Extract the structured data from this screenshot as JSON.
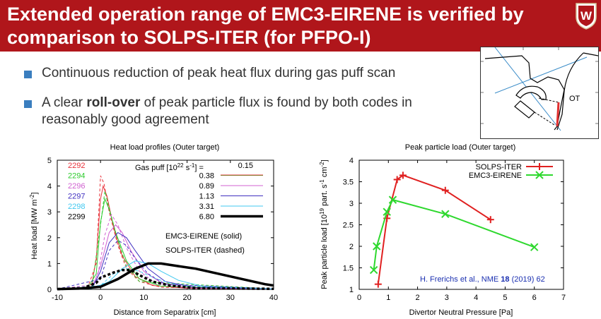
{
  "slide": {
    "title_line1": "Extended operation range of EMC3-EIRENE is verified by",
    "title_line2": "comparison to SOLPS-ITER (for PFPO-I)",
    "bullets": [
      {
        "text": "Continuous reduction of peak heat flux during gas puff scan"
      },
      {
        "pre": "A clear ",
        "bold": "roll-over",
        "post": " of peak particle flux is found by both codes in",
        "line2": "reasonably good agreement"
      }
    ],
    "inset_label": "OT",
    "reference": {
      "pre": "H. Frerichs et al., NME ",
      "bold": "18",
      "post": " (2019) 62"
    },
    "colors": {
      "title_bg": "#b0161b",
      "bullet": "#3a7ebf"
    }
  },
  "chart_data": [
    {
      "type": "line",
      "title": "Heat load profiles (Outer target)",
      "xlabel": "Distance from Separatrix [cm]",
      "ylabel": "Heat load [MW m",
      "ylabel_sup": "-2",
      "ylabel_end": "]",
      "xlim": [
        -10,
        40
      ],
      "ylim": [
        0,
        5
      ],
      "xticks": [
        "-10",
        "0",
        "10",
        "20",
        "30",
        "40"
      ],
      "yticks": [
        "0",
        "1",
        "2",
        "3",
        "4",
        "5"
      ],
      "legend_title": "Gas puff [10",
      "legend_title_sup": "22",
      "legend_title_mid": " s",
      "legend_title_sup2": "-1",
      "legend_title_end": "] =",
      "annotation_solid": "EMC3-EIRENE (solid)",
      "annotation_dashed": "SOLPS-ITER (dashed)",
      "series": [
        {
          "name": "2292",
          "gas": "0.15",
          "color": "#e8323a",
          "width": 1,
          "solid": [
            [
              -10,
              0.01
            ],
            [
              -4,
              0.03
            ],
            [
              -2,
              0.2
            ],
            [
              -1,
              1.2
            ],
            [
              0,
              3.5
            ],
            [
              0.6,
              4.0
            ],
            [
              1.5,
              3.6
            ],
            [
              3,
              2.4
            ],
            [
              5,
              1.3
            ],
            [
              8,
              0.5
            ],
            [
              12,
              0.15
            ],
            [
              20,
              0.04
            ],
            [
              40,
              0.02
            ]
          ],
          "dashed": [
            [
              -10,
              0.01
            ],
            [
              -3,
              0.05
            ],
            [
              -1,
              1.0
            ],
            [
              0,
              4.4
            ],
            [
              0.8,
              4.1
            ],
            [
              2,
              3.0
            ],
            [
              4,
              1.7
            ],
            [
              6,
              0.8
            ],
            [
              9,
              0.3
            ],
            [
              14,
              0.08
            ],
            [
              40,
              0.02
            ]
          ]
        },
        {
          "name": "2294",
          "gas": "0.38",
          "color": "#2ecb2e",
          "width": 1,
          "solid": [
            [
              -10,
              0.01
            ],
            [
              -3,
              0.04
            ],
            [
              -1,
              0.6
            ],
            [
              0,
              2.6
            ],
            [
              1,
              3.5
            ],
            [
              2,
              3.1
            ],
            [
              3.5,
              2.2
            ],
            [
              6,
              1.1
            ],
            [
              9,
              0.4
            ],
            [
              14,
              0.12
            ],
            [
              40,
              0.02
            ]
          ],
          "dashed": [
            [
              -10,
              0.01
            ],
            [
              -2,
              0.08
            ],
            [
              0,
              2.5
            ],
            [
              1,
              3.8
            ],
            [
              2.2,
              3.0
            ],
            [
              4,
              1.9
            ],
            [
              6,
              0.9
            ],
            [
              9,
              0.3
            ],
            [
              40,
              0.02
            ]
          ]
        },
        {
          "name": "2296",
          "gas": "0.89",
          "color": "#d060d0",
          "width": 1,
          "solid": [
            [
              -10,
              0.01
            ],
            [
              -2,
              0.05
            ],
            [
              0,
              0.9
            ],
            [
              2,
              2.2
            ],
            [
              3.5,
              2.5
            ],
            [
              5,
              2.2
            ],
            [
              7,
              1.5
            ],
            [
              10,
              0.7
            ],
            [
              14,
              0.25
            ],
            [
              20,
              0.06
            ],
            [
              40,
              0.02
            ]
          ],
          "dashed": [
            [
              -10,
              0.01
            ],
            [
              -1,
              0.2
            ],
            [
              1,
              2.1
            ],
            [
              2.5,
              2.9
            ],
            [
              4,
              2.5
            ],
            [
              6,
              1.6
            ],
            [
              9,
              0.7
            ],
            [
              13,
              0.2
            ],
            [
              40,
              0.02
            ]
          ]
        },
        {
          "name": "2297",
          "gas": "1.13",
          "color": "#4030c0",
          "width": 1,
          "solid": [
            [
              -10,
              0.01
            ],
            [
              -2,
              0.04
            ],
            [
              0,
              0.7
            ],
            [
              2,
              1.8
            ],
            [
              4,
              2.2
            ],
            [
              6,
              2.0
            ],
            [
              8,
              1.5
            ],
            [
              11,
              0.8
            ],
            [
              15,
              0.3
            ],
            [
              22,
              0.07
            ],
            [
              40,
              0.02
            ]
          ],
          "dashed": [
            [
              -10,
              0.01
            ],
            [
              0,
              0.4
            ],
            [
              2,
              1.5
            ],
            [
              4,
              1.9
            ],
            [
              6,
              1.7
            ],
            [
              8,
              1.2
            ],
            [
              11,
              0.6
            ],
            [
              15,
              0.2
            ],
            [
              40,
              0.02
            ]
          ]
        },
        {
          "name": "2298",
          "gas": "3.31",
          "color": "#40c8f0",
          "width": 1,
          "solid": [
            [
              -10,
              0.01
            ],
            [
              -2,
              0.03
            ],
            [
              2,
              0.3
            ],
            [
              5,
              0.8
            ],
            [
              8,
              1.1
            ],
            [
              11,
              1.0
            ],
            [
              14,
              0.7
            ],
            [
              18,
              0.35
            ],
            [
              24,
              0.1
            ],
            [
              40,
              0.02
            ]
          ],
          "dashed": [
            [
              -10,
              0.01
            ],
            [
              0,
              0.15
            ],
            [
              3,
              0.6
            ],
            [
              6,
              0.8
            ],
            [
              9,
              0.7
            ],
            [
              13,
              0.4
            ],
            [
              18,
              0.15
            ],
            [
              40,
              0.02
            ]
          ]
        },
        {
          "name": "2299",
          "gas": "6.80",
          "color": "#000000",
          "width": 3.5,
          "solid": [
            [
              -10,
              0.01
            ],
            [
              -5,
              0.03
            ],
            [
              0,
              0.1
            ],
            [
              4,
              0.4
            ],
            [
              8,
              0.8
            ],
            [
              11,
              1.0
            ],
            [
              14,
              1.0
            ],
            [
              18,
              0.9
            ],
            [
              22,
              0.8
            ],
            [
              26,
              0.65
            ],
            [
              30,
              0.5
            ],
            [
              34,
              0.35
            ],
            [
              38,
              0.2
            ],
            [
              40,
              0.15
            ]
          ],
          "dashed": [
            [
              -10,
              0.01
            ],
            [
              -4,
              0.05
            ],
            [
              -1,
              0.25
            ],
            [
              0,
              0.45
            ],
            [
              3,
              0.65
            ],
            [
              5,
              0.75
            ],
            [
              7,
              0.75
            ],
            [
              9,
              0.55
            ],
            [
              12,
              0.3
            ],
            [
              16,
              0.15
            ],
            [
              22,
              0.05
            ],
            [
              40,
              0.02
            ]
          ]
        }
      ]
    },
    {
      "type": "line",
      "title": "Peak particle load (Outer target)",
      "xlabel": "Divertor Neutral Pressure [Pa]",
      "ylabel": "Peak particle load [10",
      "ylabel_sup": "19",
      "ylabel_mid": " part. s",
      "ylabel_sup2": "-1",
      "ylabel_mid2": " cm",
      "ylabel_sup3": "-2",
      "ylabel_end": "]",
      "xlim": [
        0,
        7
      ],
      "ylim": [
        1,
        4
      ],
      "xticks": [
        "0",
        "1",
        "2",
        "3",
        "4",
        "5",
        "6",
        "7"
      ],
      "yticks": [
        "1",
        "1.5",
        "2",
        "2.5",
        "3",
        "3.5",
        "4"
      ],
      "legend": "top-right",
      "series": [
        {
          "name": "SOLPS-ITER",
          "color": "#e02020",
          "marker": "+",
          "x": [
            0.65,
            0.95,
            1.3,
            1.5,
            2.95,
            4.5
          ],
          "y": [
            1.12,
            2.65,
            3.55,
            3.65,
            3.3,
            2.62
          ]
        },
        {
          "name": "EMC3-EIRENE",
          "color": "#2ed82e",
          "marker": "x",
          "x": [
            0.5,
            0.6,
            0.95,
            1.15,
            2.95,
            6.0
          ],
          "y": [
            1.45,
            2.0,
            2.8,
            3.08,
            2.75,
            1.98
          ]
        }
      ]
    }
  ]
}
